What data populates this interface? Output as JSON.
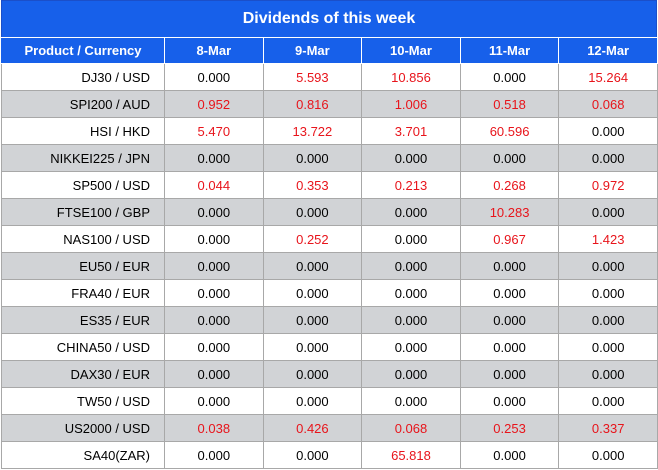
{
  "title": "Dividends of this week",
  "columns": [
    "Product / Currency",
    "8-Mar",
    "9-Mar",
    "10-Mar",
    "11-Mar",
    "12-Mar"
  ],
  "colors": {
    "header_bg": "#1760ea",
    "stripe": "#d1d3d6",
    "highlight": "#e8141b"
  },
  "rows": [
    {
      "product": "DJ30 / USD",
      "values": [
        "0.000",
        "5.593",
        "10.856",
        "0.000",
        "15.264"
      ]
    },
    {
      "product": "SPI200 / AUD",
      "values": [
        "0.952",
        "0.816",
        "1.006",
        "0.518",
        "0.068"
      ]
    },
    {
      "product": "HSI / HKD",
      "values": [
        "5.470",
        "13.722",
        "3.701",
        "60.596",
        "0.000"
      ]
    },
    {
      "product": "NIKKEI225 / JPN",
      "values": [
        "0.000",
        "0.000",
        "0.000",
        "0.000",
        "0.000"
      ]
    },
    {
      "product": "SP500 / USD",
      "values": [
        "0.044",
        "0.353",
        "0.213",
        "0.268",
        "0.972"
      ]
    },
    {
      "product": "FTSE100 / GBP",
      "values": [
        "0.000",
        "0.000",
        "0.000",
        "10.283",
        "0.000"
      ]
    },
    {
      "product": "NAS100 / USD",
      "values": [
        "0.000",
        "0.252",
        "0.000",
        "0.967",
        "1.423"
      ]
    },
    {
      "product": "EU50 / EUR",
      "values": [
        "0.000",
        "0.000",
        "0.000",
        "0.000",
        "0.000"
      ]
    },
    {
      "product": "FRA40 / EUR",
      "values": [
        "0.000",
        "0.000",
        "0.000",
        "0.000",
        "0.000"
      ]
    },
    {
      "product": "ES35 / EUR",
      "values": [
        "0.000",
        "0.000",
        "0.000",
        "0.000",
        "0.000"
      ]
    },
    {
      "product": "CHINA50 / USD",
      "values": [
        "0.000",
        "0.000",
        "0.000",
        "0.000",
        "0.000"
      ]
    },
    {
      "product": "DAX30 / EUR",
      "values": [
        "0.000",
        "0.000",
        "0.000",
        "0.000",
        "0.000"
      ]
    },
    {
      "product": "TW50 / USD",
      "values": [
        "0.000",
        "0.000",
        "0.000",
        "0.000",
        "0.000"
      ]
    },
    {
      "product": "US2000 / USD",
      "values": [
        "0.038",
        "0.426",
        "0.068",
        "0.253",
        "0.337"
      ]
    },
    {
      "product": "SA40(ZAR)",
      "values": [
        "0.000",
        "0.000",
        "65.818",
        "0.000",
        "0.000"
      ]
    }
  ]
}
